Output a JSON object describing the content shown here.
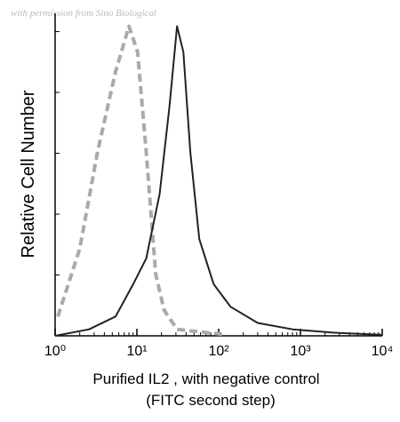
{
  "chart_data": {
    "type": "line",
    "watermark": "with permission from Sino Biological",
    "y_label": "Relative Cell Number",
    "x_label": "Purified IL2 , with negative control",
    "x_label_2": "(FITC second step)",
    "x_log": true,
    "xlim": [
      1,
      10000
    ],
    "xticks": [
      {
        "value": 1,
        "label": "10⁰"
      },
      {
        "value": 10,
        "label": "10¹"
      },
      {
        "value": 100,
        "label": "10²"
      },
      {
        "value": 1000,
        "label": "10³"
      },
      {
        "value": 10000,
        "label": "10⁴"
      }
    ],
    "ylim": [
      0,
      100
    ],
    "series": [
      {
        "color": "#aaaaaa",
        "dashed": true,
        "x": [
          1.08,
          2.0,
          3.3,
          5.5,
          8,
          10.2,
          13,
          17,
          21.5,
          31,
          110
        ],
        "values": [
          6,
          27,
          57,
          82,
          96,
          88,
          57,
          19,
          8,
          2,
          0.5
        ]
      },
      {
        "color": "#222222",
        "dashed": false,
        "x": [
          1,
          2.6,
          5.5,
          9,
          13,
          19,
          25,
          31,
          37,
          45,
          58,
          87,
          140,
          300,
          800,
          2500,
          10000
        ],
        "values": [
          0,
          2,
          6,
          16,
          24,
          44,
          71,
          96,
          88,
          57,
          30,
          16,
          9,
          4,
          2,
          1,
          0.3
        ]
      }
    ]
  }
}
